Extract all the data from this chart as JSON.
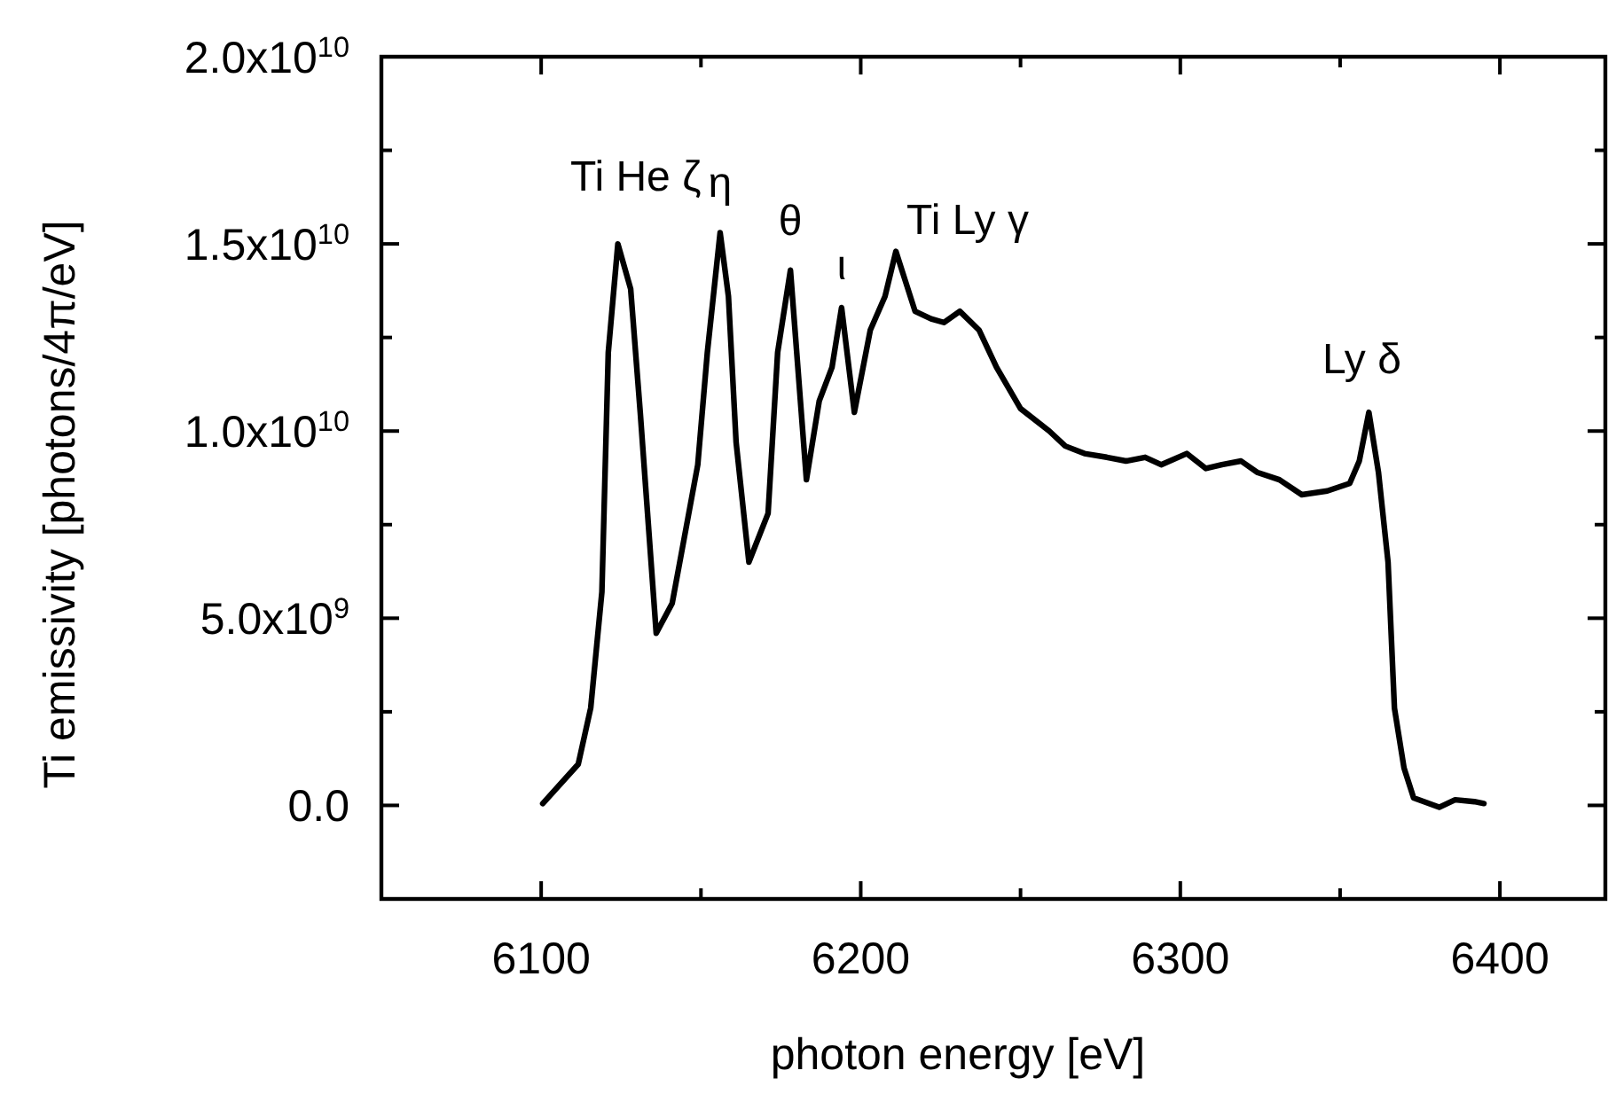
{
  "chart_data": {
    "type": "line",
    "xlabel": "photon energy [eV]",
    "ylabel": "Ti emissivity [photons/4π/eV]",
    "x": [
      6100.5,
      6111.6,
      6115.5,
      6119,
      6121,
      6124,
      6128,
      6131,
      6136,
      6141,
      6149,
      6152,
      6156,
      6158.6,
      6161,
      6165,
      6171,
      6174,
      6178,
      6183,
      6187,
      6191,
      6194,
      6198,
      6203,
      6207.6,
      6211,
      6217,
      6222,
      6226,
      6231,
      6237,
      6242.5,
      6250,
      6259,
      6264,
      6270,
      6277,
      6283,
      6289,
      6294,
      6302,
      6308,
      6313,
      6319,
      6324,
      6331,
      6338,
      6346,
      6353,
      6356,
      6359,
      6362,
      6365,
      6367,
      6370,
      6373,
      6381,
      6386,
      6392,
      6395
    ],
    "series": [
      {
        "color": "#000000",
        "values": [
          50000000.0,
          1100000000.0,
          2600000000.0,
          5700000000.0,
          12100000000.0,
          15000000000.0,
          13800000000.0,
          10500000000.0,
          4600000000.0,
          5400000000.0,
          9100000000.0,
          12100000000.0,
          15300000000.0,
          13600000000.0,
          9700000000.0,
          6500000000.0,
          7800000000.0,
          12100000000.0,
          14300000000.0,
          8700000000.0,
          10800000000.0,
          11700000000.0,
          13300000000.0,
          10500000000.0,
          12700000000.0,
          13600000000.0,
          14800000000.0,
          13200000000.0,
          13000000000.0,
          12900000000.0,
          13200000000.0,
          12700000000.0,
          11700000000.0,
          10600000000.0,
          10000000000.0,
          9600000000.0,
          9400000000.0,
          9300000000.0,
          9200000000.0,
          9300000000.0,
          9100000000.0,
          9400000000.0,
          9000000000.0,
          9100000000.0,
          9200000000.0,
          8900000000.0,
          8700000000.0,
          8300000000.0,
          8400000000.0,
          8600000000.0,
          9200000000.0,
          10500000000.0,
          8900000000.0,
          6500000000.0,
          2600000000.0,
          1000000000.0,
          200000000.0,
          -50000000.0,
          150000000.0,
          100000000.0,
          50000000.0
        ]
      }
    ],
    "xlim": [
      6050,
      6433
    ],
    "ylim": [
      -2500000000.0,
      20000000000.0
    ],
    "xticks": [
      {
        "value": 6050,
        "label": null
      },
      6100,
      {
        "value": 6150,
        "label": null
      },
      6200,
      {
        "value": 6250,
        "label": null
      },
      6300,
      {
        "value": 6350,
        "label": null
      },
      6400
    ],
    "yticks": [
      {
        "value": 0,
        "label": "0.0"
      },
      {
        "value": 2500000000.0,
        "label": null
      },
      {
        "value": 5000000000.0,
        "label": "5.0x10$^{9}$"
      },
      {
        "value": 7500000000.0,
        "label": null
      },
      {
        "value": 10000000000.0,
        "label": "1.0x10$^{10}$"
      },
      {
        "value": 12500000000.0,
        "label": null
      },
      {
        "value": 15000000000.0,
        "label": "1.5x10$^{10}$"
      },
      {
        "value": 17500000000.0,
        "label": null
      },
      {
        "value": 20000000000.0,
        "label": "2.0x10$^{10}$"
      }
    ],
    "grid": false,
    "marker": "none",
    "line_style": "solid",
    "annotations": [
      {
        "text": "Ti He ζ",
        "x": 6124,
        "y": 15000000000.0
      },
      {
        "text": "η",
        "x": 6156,
        "y": 15300000000.0
      },
      {
        "text": "θ",
        "x": 6178,
        "y": 14300000000.0
      },
      {
        "text": "ι",
        "x": 6194,
        "y": 13300000000.0
      },
      {
        "text": "Ti Ly γ",
        "x": 6211,
        "y": 14800000000.0
      },
      {
        "text": "Ly δ",
        "x": 6359,
        "y": 10500000000.0
      }
    ]
  }
}
